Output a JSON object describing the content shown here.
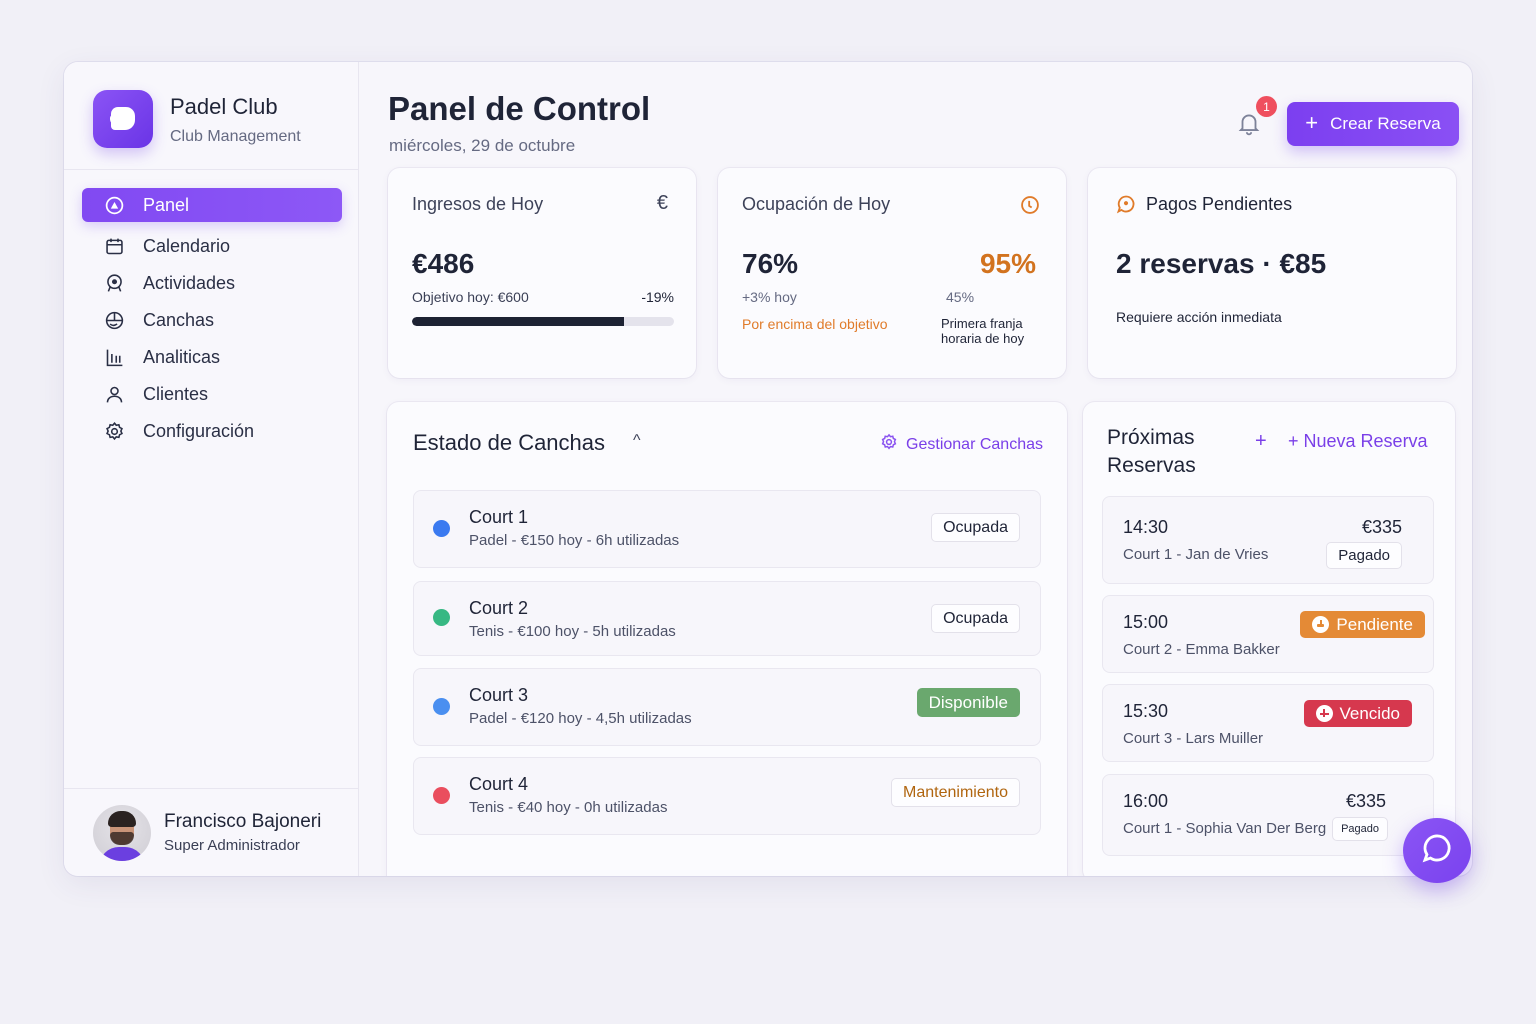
{
  "brand": {
    "title": "Padel Club",
    "subtitle": "Club Management"
  },
  "sidebar": {
    "items": [
      {
        "label": "Panel",
        "icon": "dashboard-icon",
        "active": true
      },
      {
        "label": "Calendario",
        "icon": "calendar-icon"
      },
      {
        "label": "Actividades",
        "icon": "activities-icon"
      },
      {
        "label": "Canchas",
        "icon": "courts-icon"
      },
      {
        "label": "Analiticas",
        "icon": "analytics-icon"
      },
      {
        "label": "Clientes",
        "icon": "user-icon"
      },
      {
        "label": "Configuración",
        "icon": "gear-icon"
      }
    ]
  },
  "user": {
    "name": "Francisco Bajoneri",
    "role": "Super Administrador"
  },
  "header": {
    "title": "Panel de Control",
    "date": "miércoles, 29 de octubre",
    "notification_count": "1",
    "create_button": "Crear Reserva",
    "create_icon": "+"
  },
  "kpis": {
    "revenue": {
      "title": "Ingresos de Hoy",
      "icon": "€",
      "value": "€486",
      "target_label": "Objetivo hoy: €600",
      "delta": "-19%",
      "progress_pct": 81
    },
    "occupancy": {
      "title": "Ocupación de Hoy",
      "value": "76%",
      "delta": "+3% hoy",
      "note": "Por encima del objetivo",
      "peak_value": "95%",
      "peak_sub": "45%",
      "peak_note_line1": "Primera franja",
      "peak_note_line2": "horaria de hoy"
    },
    "pending": {
      "title": "Pagos Pendientes",
      "value": "2 reservas · €85",
      "note": "Requiere acción inmediata"
    }
  },
  "courts": {
    "title": "Estado de Canchas",
    "collapse_icon": "^",
    "manage_label": "Gestionar Canchas",
    "items": [
      {
        "name": "Court 1",
        "meta": "Padel - €150 hoy - 6h utilizadas",
        "status": "Ocupada",
        "dot": "#3b7af0"
      },
      {
        "name": "Court 2",
        "meta": "Tenis - €100 hoy - 5h utilizadas",
        "status": "Ocupada",
        "dot": "#37b883"
      },
      {
        "name": "Court 3",
        "meta": "Padel - €120 hoy - 4,5h utilizadas",
        "status": "Disponible",
        "dot": "#4a8ff0"
      },
      {
        "name": "Court 4",
        "meta": "Tenis - €40 hoy - 0h utilizadas",
        "status": "Mantenimiento",
        "dot": "#ea4e5e"
      }
    ]
  },
  "reservations": {
    "title_line1": "Próximas",
    "title_line2": "Reservas",
    "plus_icon": "+",
    "new_label": "+ Nueva Reserva",
    "items": [
      {
        "time": "14:30",
        "sub": "Court 1 - Jan de Vries",
        "amount": "€335",
        "status": "Pagado"
      },
      {
        "time": "15:00",
        "sub": "Court 2 - Emma Bakker",
        "status": "Pendiente"
      },
      {
        "time": "15:30",
        "sub": "Court 3 - Lars Muiller",
        "status": "Vencido"
      },
      {
        "time": "16:00",
        "sub": "Court 1 - Sophia Van Der Berg",
        "amount": "€335",
        "status": "Pagado"
      }
    ]
  },
  "colors": {
    "accent": "#7c3ff0",
    "orange": "#e07b2a",
    "danger": "#d6384e",
    "success": "#6aa86e"
  }
}
